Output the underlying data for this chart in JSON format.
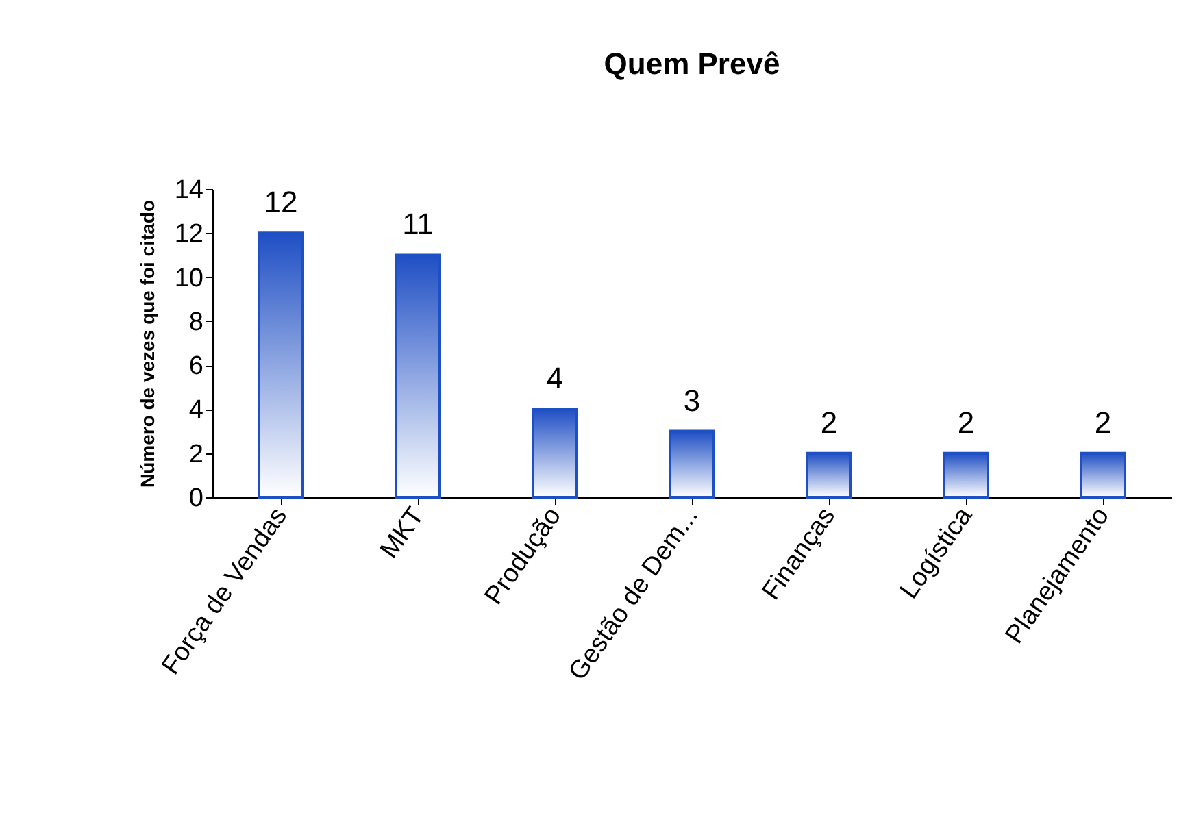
{
  "chart_data": {
    "type": "bar",
    "title": "Quem Prevê",
    "ylabel": "Número de vezes que foi citado",
    "categories": [
      "Força de Vendas",
      "MKT",
      "Produção",
      "Gestão de Dem...",
      "Finanças",
      "Logística",
      "Planejamento"
    ],
    "values": [
      12,
      11,
      4,
      3,
      2,
      2,
      2
    ],
    "color": "#1f4fc4",
    "ylim": [
      0,
      14
    ],
    "yticks": [
      0,
      2,
      4,
      6,
      8,
      10,
      12,
      14
    ],
    "grid": false,
    "data_labels": true
  }
}
